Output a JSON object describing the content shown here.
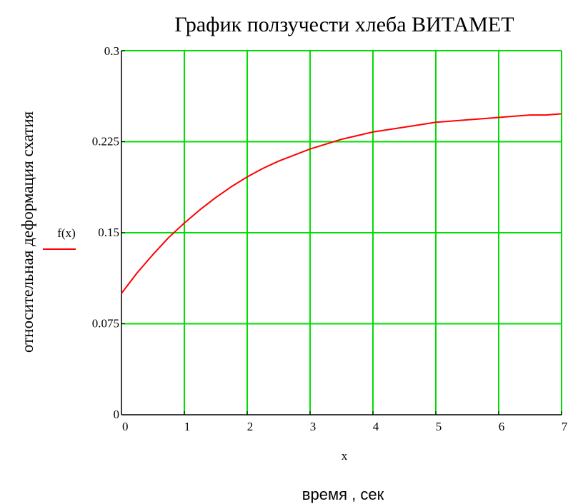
{
  "chart_data": {
    "type": "line",
    "title": "График ползучести хлеба ВИТАМЕТ",
    "xlabel": "время , сек",
    "ylabel": "относительная деформация схатия",
    "x_variable_label": "x",
    "xlim": [
      0,
      7
    ],
    "ylim": [
      0,
      0.3
    ],
    "x_ticks": [
      0,
      1,
      2,
      3,
      4,
      5,
      6,
      7
    ],
    "x_tick_labels": [
      "0",
      "1",
      "2",
      "3",
      "4",
      "5",
      "6",
      "7"
    ],
    "y_ticks": [
      0,
      0.075,
      0.15,
      0.225,
      0.3
    ],
    "y_tick_labels": [
      "0",
      "0.075",
      "0.15",
      "0.225",
      "0.3"
    ],
    "grid": true,
    "legend_position": "left",
    "colors": {
      "grid": "#00dd00",
      "axes": "#000000",
      "series": "#ff0000"
    },
    "series": [
      {
        "name": "f(x)",
        "color": "#ff0000",
        "x": [
          0,
          0.25,
          0.5,
          0.75,
          1,
          1.25,
          1.5,
          1.75,
          2,
          2.25,
          2.5,
          2.75,
          3,
          3.25,
          3.5,
          3.75,
          4,
          4.25,
          4.5,
          4.75,
          5,
          5.25,
          5.5,
          5.75,
          6,
          6.25,
          6.5,
          6.75,
          7
        ],
        "y": [
          0.1,
          0.117,
          0.132,
          0.146,
          0.158,
          0.169,
          0.179,
          0.188,
          0.196,
          0.203,
          0.209,
          0.214,
          0.219,
          0.223,
          0.227,
          0.23,
          0.233,
          0.235,
          0.237,
          0.239,
          0.241,
          0.242,
          0.243,
          0.244,
          0.245,
          0.246,
          0.247,
          0.247,
          0.248
        ]
      }
    ]
  }
}
